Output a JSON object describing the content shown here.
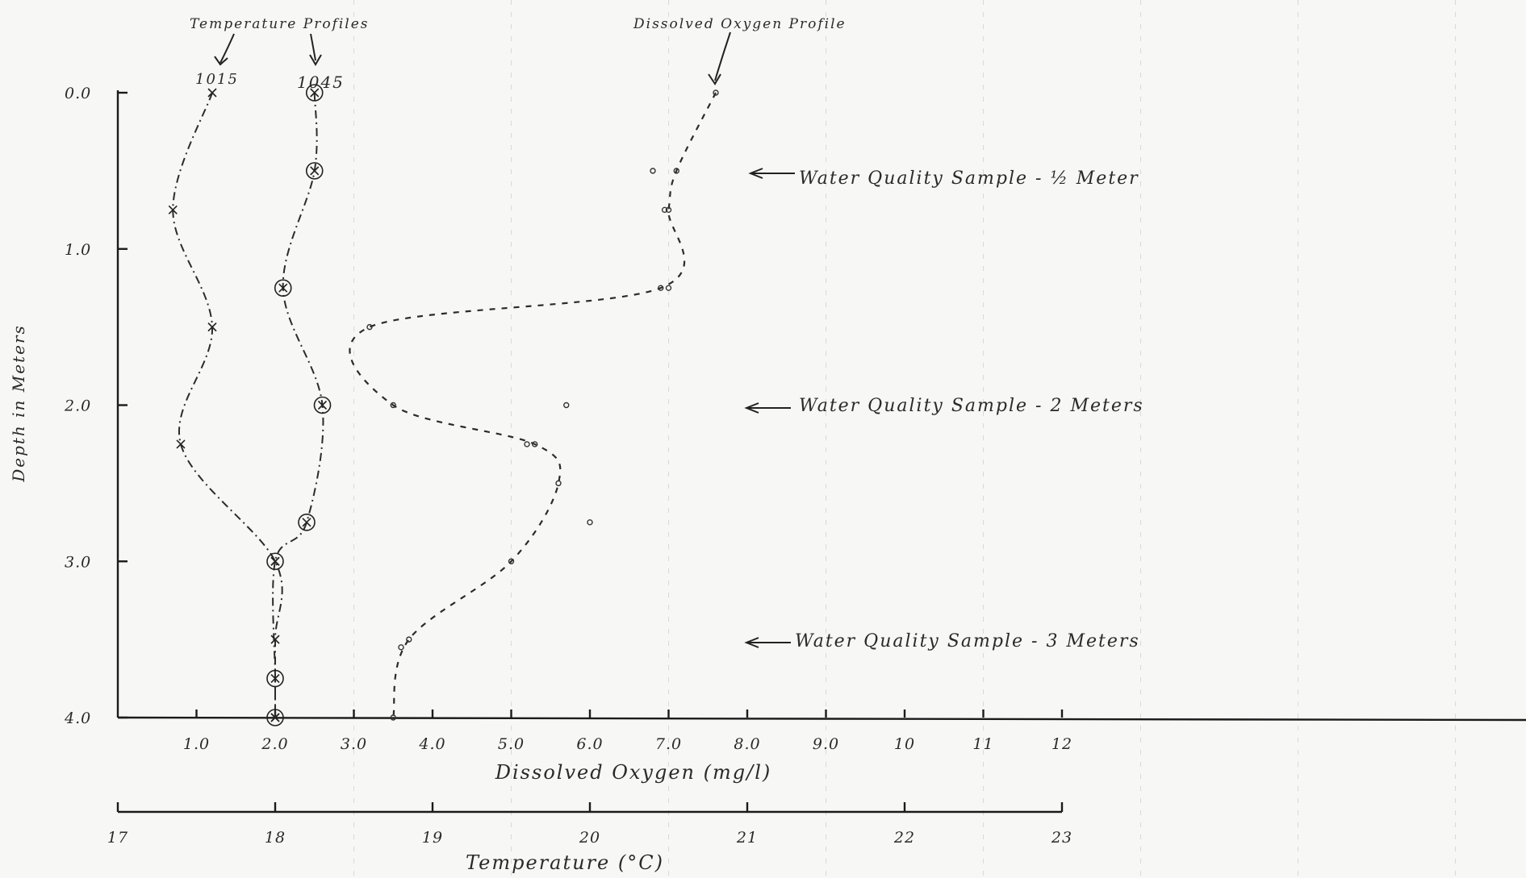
{
  "chart_data": {
    "type": "line",
    "y_axis": {
      "label": "Depth in Meters",
      "ticks": [
        "0.0",
        "1.0",
        "2.0",
        "3.0",
        "4.0"
      ],
      "ylim": [
        0,
        4
      ],
      "inverted": true
    },
    "x_axis_do": {
      "label": "Dissolved Oxygen (mg/l)",
      "ticks": [
        "1.0",
        "2.0",
        "3.0",
        "4.0",
        "5.0",
        "6.0",
        "7.0",
        "8.0",
        "9.0",
        "10",
        "11",
        "12"
      ],
      "xlim": [
        0,
        12
      ]
    },
    "x_axis_temp": {
      "label": "Temperature (°C)",
      "ticks": [
        "17",
        "18",
        "19",
        "20",
        "21",
        "22",
        "23"
      ],
      "xlim": [
        17,
        23
      ]
    },
    "series": [
      {
        "name": "1015",
        "axis": "temperature",
        "marker": "x",
        "points": [
          [
            17.6,
            0.0
          ],
          [
            17.35,
            0.75
          ],
          [
            17.6,
            1.5
          ],
          [
            17.4,
            2.25
          ],
          [
            18.0,
            3.0
          ],
          [
            18.0,
            3.5
          ],
          [
            18.0,
            4.0
          ]
        ]
      },
      {
        "name": "1045",
        "axis": "temperature",
        "marker": "circled-x",
        "points": [
          [
            18.25,
            0.0
          ],
          [
            18.25,
            0.5
          ],
          [
            18.05,
            1.25
          ],
          [
            18.3,
            2.0
          ],
          [
            18.2,
            2.75
          ],
          [
            18.0,
            3.0
          ],
          [
            18.0,
            3.75
          ],
          [
            18.0,
            4.0
          ]
        ]
      },
      {
        "name": "Dissolved Oxygen Profile",
        "axis": "dissolved_oxygen",
        "marker": "dot",
        "points": [
          [
            7.6,
            0.0
          ],
          [
            7.1,
            0.5
          ],
          [
            7.0,
            0.75
          ],
          [
            6.9,
            1.25
          ],
          [
            3.2,
            1.5
          ],
          [
            3.5,
            2.0
          ],
          [
            5.3,
            2.25
          ],
          [
            5.6,
            2.5
          ],
          [
            5.0,
            3.0
          ],
          [
            3.7,
            3.5
          ],
          [
            3.5,
            4.0
          ]
        ]
      }
    ],
    "stray_points_do": [
      [
        6.8,
        0.5
      ],
      [
        6.95,
        0.75
      ],
      [
        7.0,
        1.25
      ],
      [
        5.7,
        2.0
      ],
      [
        5.2,
        2.25
      ],
      [
        6.0,
        2.75
      ],
      [
        3.6,
        3.55
      ]
    ],
    "annotations": [
      {
        "text": "Temperature Profiles"
      },
      {
        "text": "Dissolved Oxygen Profile"
      },
      {
        "text": "Water Quality Sample - ½ Meter",
        "depth": 0.5
      },
      {
        "text": "Water Quality Sample - 2 Meters",
        "depth": 2.0
      },
      {
        "text": "Water Quality Sample - 3 Meters",
        "depth": 3.5
      }
    ],
    "grid": false,
    "legend": "none"
  }
}
